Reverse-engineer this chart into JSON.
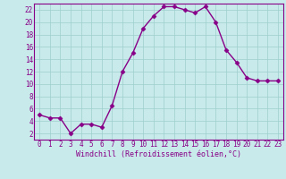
{
  "x": [
    0,
    1,
    2,
    3,
    4,
    5,
    6,
    7,
    8,
    9,
    10,
    11,
    12,
    13,
    14,
    15,
    16,
    17,
    18,
    19,
    20,
    21,
    22,
    23
  ],
  "y": [
    5,
    4.5,
    4.5,
    2,
    3.5,
    3.5,
    3,
    6.5,
    12,
    15,
    19,
    21,
    22.5,
    22.5,
    22,
    21.5,
    22.5,
    20,
    15.5,
    13.5,
    11,
    10.5,
    10.5,
    10.5
  ],
  "xlabel": "Windchill (Refroidissement éolien,°C)",
  "xlim": [
    -0.5,
    23.5
  ],
  "ylim": [
    1,
    23
  ],
  "yticks": [
    2,
    4,
    6,
    8,
    10,
    12,
    14,
    16,
    18,
    20,
    22
  ],
  "xticks": [
    0,
    1,
    2,
    3,
    4,
    5,
    6,
    7,
    8,
    9,
    10,
    11,
    12,
    13,
    14,
    15,
    16,
    17,
    18,
    19,
    20,
    21,
    22,
    23
  ],
  "line_color": "#880088",
  "marker": "D",
  "marker_size": 2.5,
  "background_color": "#c8eaea",
  "grid_color": "#9ecece",
  "label_color": "#880088",
  "spine_color": "#880088",
  "tick_fontsize": 5.5,
  "xlabel_fontsize": 6.0,
  "linewidth": 1.0
}
